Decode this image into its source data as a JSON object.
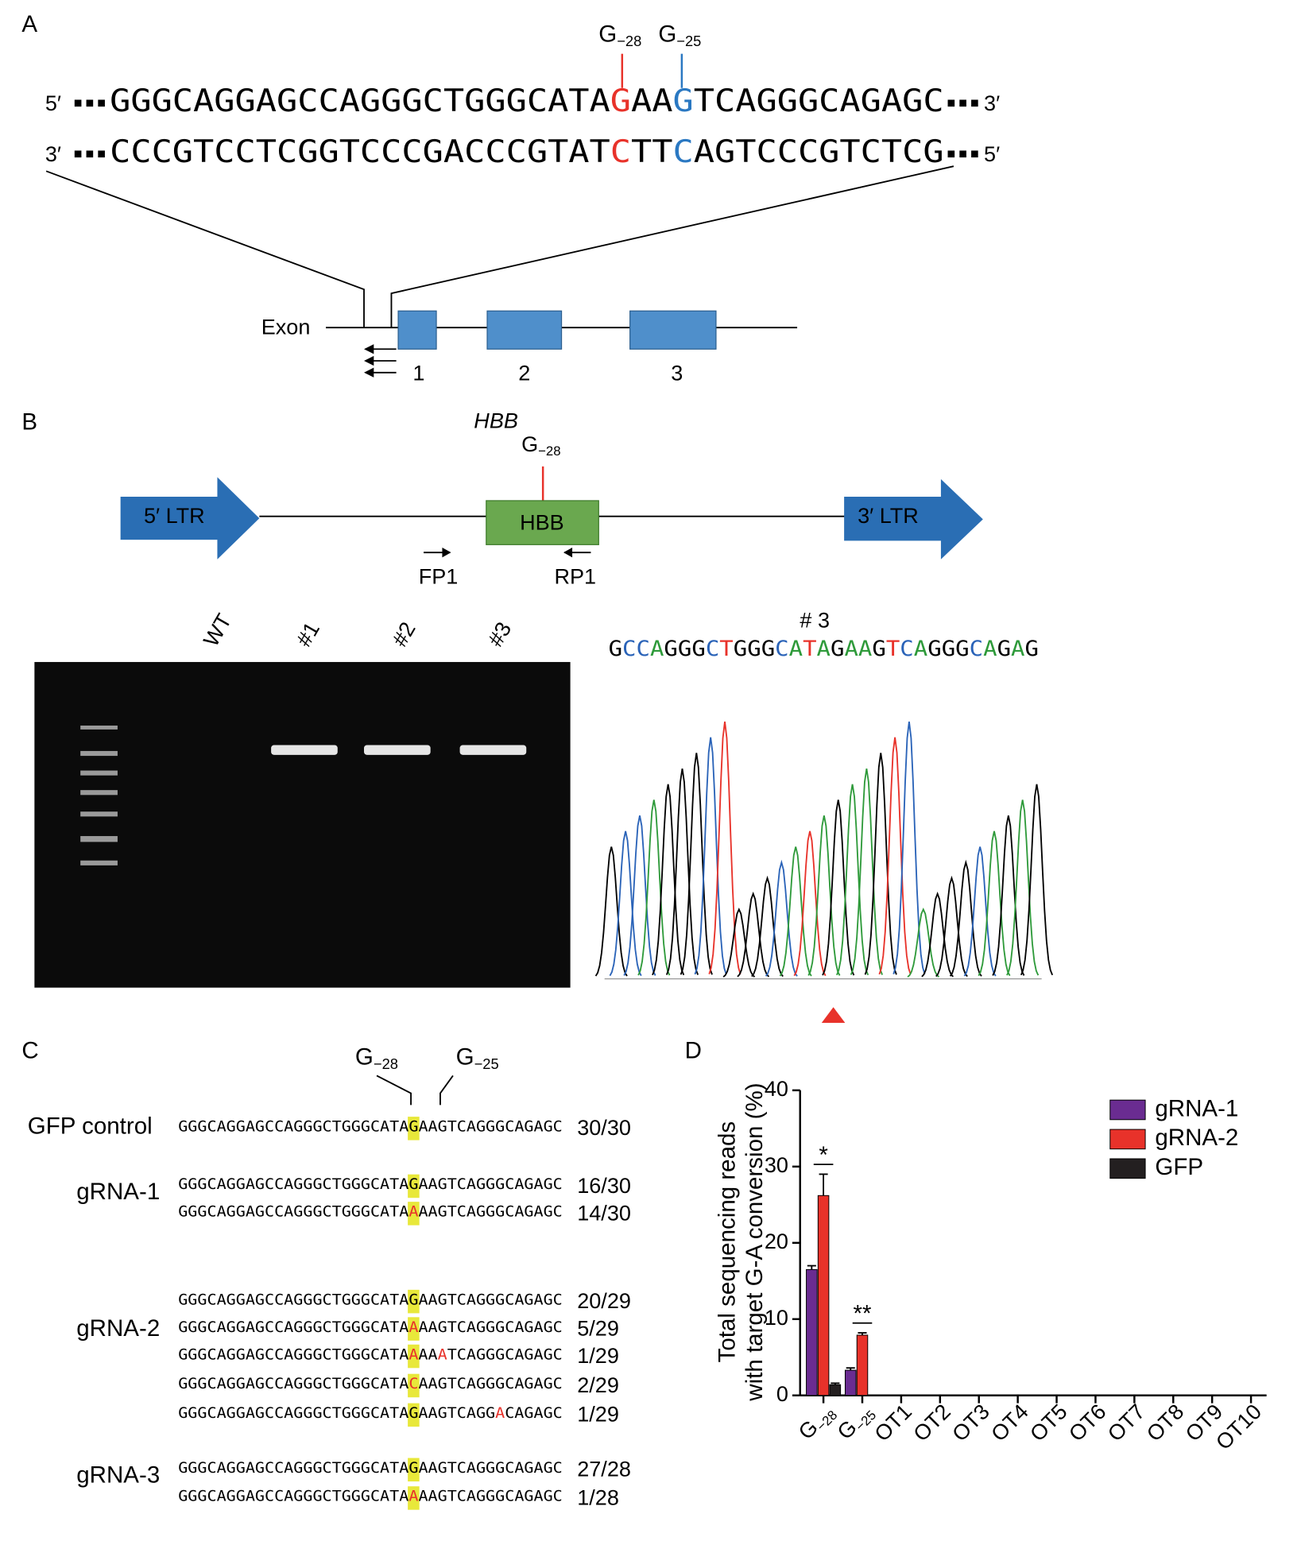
{
  "panel_a": {
    "label": "A",
    "sites": [
      {
        "base": "G",
        "sub": "−28",
        "color": "#e8322a"
      },
      {
        "base": "G",
        "sub": "−25",
        "color": "#2a78c2"
      }
    ],
    "strands": [
      {
        "left": "5′",
        "right": "3′",
        "segments": [
          {
            "text": "GGGCAGGAGCCAGGGCTGGGCATA",
            "color": "#000000"
          },
          {
            "text": "G",
            "color": "#e8322a"
          },
          {
            "text": "AA",
            "color": "#000000"
          },
          {
            "text": "G",
            "color": "#2a78c2"
          },
          {
            "text": "TCAGGGCAGAGC",
            "color": "#000000"
          }
        ]
      },
      {
        "left": "3′",
        "right": "5′",
        "segments": [
          {
            "text": "CCCGTCCTCGGTCCCGACCCGTAT",
            "color": "#000000"
          },
          {
            "text": "C",
            "color": "#e8322a"
          },
          {
            "text": "TT",
            "color": "#000000"
          },
          {
            "text": "C",
            "color": "#2a78c2"
          },
          {
            "text": "AGTCCCGTCTCG",
            "color": "#000000"
          }
        ]
      }
    ],
    "exon_label": "Exon",
    "exons": [
      "1",
      "2",
      "3"
    ]
  },
  "panel_b": {
    "label": "B",
    "gene": "HBB",
    "site": {
      "base": "G",
      "sub": "−28"
    },
    "ltr_left": "5′ LTR",
    "ltr_right": "3′ LTR",
    "box": "HBB",
    "primers": [
      "FP1",
      "RP1"
    ],
    "lanes": [
      "WT",
      "#1",
      "#2",
      "#3"
    ],
    "trace_title": "# 3",
    "trace_bases": [
      "G",
      "C",
      "C",
      "A",
      "G",
      "G",
      "G",
      "C",
      "T",
      "G",
      "G",
      "G",
      "C",
      "A",
      "T",
      "A",
      "G",
      "A",
      "A",
      "G",
      "T",
      "C",
      "A",
      "G",
      "G",
      "G",
      "C",
      "A",
      "G",
      "A",
      "G"
    ],
    "base_colors": {
      "G": "#000000",
      "C": "#2a63b8",
      "A": "#2e9a3a",
      "T": "#e8322a"
    }
  },
  "panel_c": {
    "label": "C",
    "sites": [
      {
        "base": "G",
        "sub": "−28"
      },
      {
        "base": "G",
        "sub": "−25"
      }
    ],
    "groups": [
      {
        "name": "GFP control",
        "rows": [
          {
            "segments": [
              {
                "text": "GGGCAGGAGCCAGGGCTGGGCATA",
                "style": "plain"
              },
              {
                "text": "G",
                "style": "hl"
              },
              {
                "text": "AAGTCAGGGCAGAGC",
                "style": "plain"
              }
            ],
            "count": "30/30"
          }
        ]
      },
      {
        "name": "gRNA-1",
        "rows": [
          {
            "segments": [
              {
                "text": "GGGCAGGAGCCAGGGCTGGGCATA",
                "style": "plain"
              },
              {
                "text": "G",
                "style": "hl"
              },
              {
                "text": "AAGTCAGGGCAGAGC",
                "style": "plain"
              }
            ],
            "count": "16/30"
          },
          {
            "segments": [
              {
                "text": "GGGCAGGAGCCAGGGCTGGGCATA",
                "style": "plain"
              },
              {
                "text": "A",
                "style": "hl-red"
              },
              {
                "text": "AAGTCAGGGCAGAGC",
                "style": "plain"
              }
            ],
            "count": "14/30"
          }
        ]
      },
      {
        "name": "gRNA-2",
        "rows": [
          {
            "segments": [
              {
                "text": "GGGCAGGAGCCAGGGCTGGGCATA",
                "style": "plain"
              },
              {
                "text": "G",
                "style": "hl"
              },
              {
                "text": "AAGTCAGGGCAGAGC",
                "style": "plain"
              }
            ],
            "count": "20/29"
          },
          {
            "segments": [
              {
                "text": "GGGCAGGAGCCAGGGCTGGGCATA",
                "style": "plain"
              },
              {
                "text": "A",
                "style": "hl-red"
              },
              {
                "text": "AAGTCAGGGCAGAGC",
                "style": "plain"
              }
            ],
            "count": "5/29"
          },
          {
            "segments": [
              {
                "text": "GGGCAGGAGCCAGGGCTGGGCATA",
                "style": "plain"
              },
              {
                "text": "A",
                "style": "hl-red"
              },
              {
                "text": "AA",
                "style": "plain"
              },
              {
                "text": "A",
                "style": "red"
              },
              {
                "text": "TCAGGGCAGAGC",
                "style": "plain"
              }
            ],
            "count": "1/29"
          },
          {
            "segments": [
              {
                "text": "GGGCAGGAGCCAGGGCTGGGCATA",
                "style": "plain"
              },
              {
                "text": "C",
                "style": "hl-red"
              },
              {
                "text": "AAGTCAGGGCAGAGC",
                "style": "plain"
              }
            ],
            "count": "2/29"
          },
          {
            "segments": [
              {
                "text": "GGGCAGGAGCCAGGGCTGGGCATA",
                "style": "plain"
              },
              {
                "text": "G",
                "style": "hl"
              },
              {
                "text": "AAGTCAGG",
                "style": "plain"
              },
              {
                "text": "A",
                "style": "red"
              },
              {
                "text": "CAGAGC",
                "style": "plain"
              }
            ],
            "count": "1/29"
          }
        ]
      },
      {
        "name": "gRNA-3",
        "rows": [
          {
            "segments": [
              {
                "text": "GGGCAGGAGCCAGGGCTGGGCATA",
                "style": "plain"
              },
              {
                "text": "G",
                "style": "hl"
              },
              {
                "text": "AAGTCAGGGCAGAGC",
                "style": "plain"
              }
            ],
            "count": "27/28"
          },
          {
            "segments": [
              {
                "text": "GGGCAGGAGCCAGGGCTGGGCATA",
                "style": "plain"
              },
              {
                "text": "A",
                "style": "hl-red"
              },
              {
                "text": "AAGTCAGGGCAGAGC",
                "style": "plain"
              }
            ],
            "count": "1/28"
          }
        ]
      }
    ]
  },
  "panel_d": {
    "label": "D",
    "chart_data": {
      "type": "bar",
      "y_label": [
        "Total sequencing reads",
        "with target G-A conversion (%)"
      ],
      "categories": [
        {
          "base": "G",
          "sub": "−28"
        },
        {
          "base": "G",
          "sub": "−25"
        },
        "OT1",
        "OT2",
        "OT3",
        "OT4",
        "OT5",
        "OT6",
        "OT7",
        "OT8",
        "OT9",
        "OT10"
      ],
      "series": [
        {
          "name": "gRNA-1",
          "color": "#6a2c91",
          "values": [
            16.5,
            3.3,
            0,
            0,
            0,
            0,
            0,
            0,
            0,
            0,
            0,
            0
          ],
          "errors": [
            0.5,
            0.3,
            0,
            0,
            0,
            0,
            0,
            0,
            0,
            0,
            0,
            0
          ]
        },
        {
          "name": "gRNA-2",
          "color": "#e8322a",
          "values": [
            26.2,
            7.9,
            0,
            0,
            0,
            0,
            0,
            0,
            0,
            0,
            0,
            0
          ],
          "errors": [
            2.8,
            0.3,
            0,
            0,
            0,
            0,
            0,
            0,
            0,
            0,
            0,
            0
          ]
        },
        {
          "name": "GFP",
          "color": "#231f20",
          "values": [
            1.4,
            0,
            0,
            0,
            0,
            0,
            0,
            0,
            0,
            0,
            0,
            0
          ],
          "errors": [
            0.2,
            0,
            0,
            0,
            0,
            0,
            0,
            0,
            0,
            0,
            0,
            0
          ]
        }
      ],
      "significance": [
        "*",
        "**",
        null,
        null,
        null,
        null,
        null,
        null,
        null,
        null,
        null,
        null
      ],
      "ylim": [
        0,
        40
      ],
      "yticks": [
        0,
        10,
        20,
        30,
        40
      ],
      "legend": "top-right"
    }
  }
}
